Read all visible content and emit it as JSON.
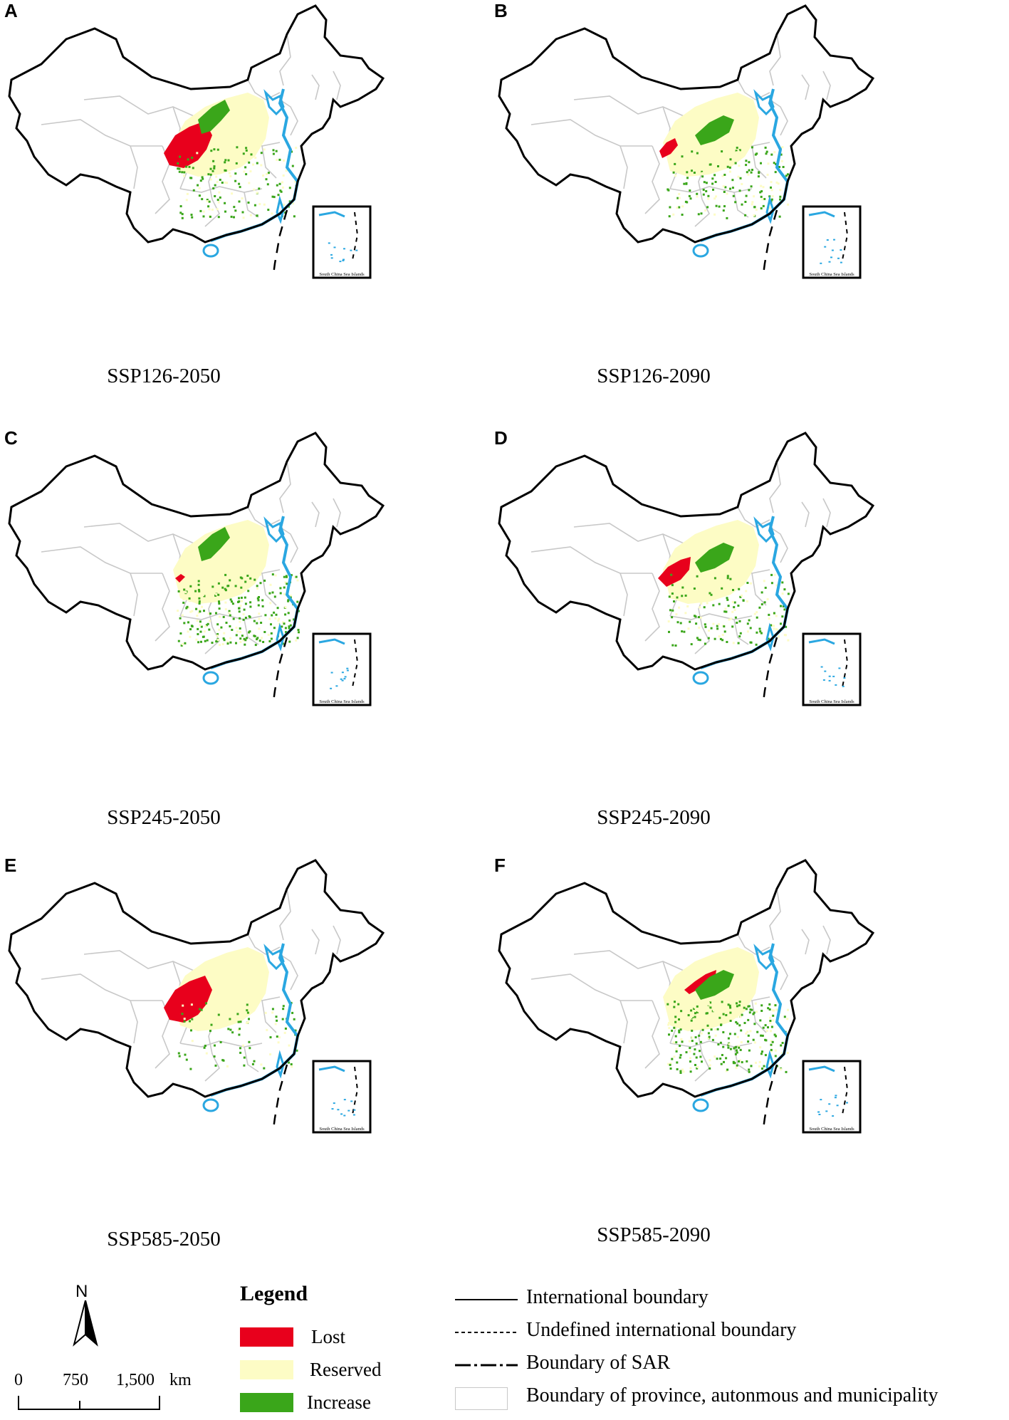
{
  "panels": [
    {
      "letter": "A",
      "caption": "SSP126-2050",
      "lost": "large",
      "increase": "north",
      "dots": "medium"
    },
    {
      "letter": "B",
      "caption": "SSP126-2090",
      "lost": "small",
      "increase": "band",
      "dots": "medium"
    },
    {
      "letter": "C",
      "caption": "SSP245-2050",
      "lost": "tiny",
      "increase": "north",
      "dots": "heavy"
    },
    {
      "letter": "D",
      "caption": "SSP245-2090",
      "lost": "medium",
      "increase": "band",
      "dots": "medium"
    },
    {
      "letter": "E",
      "caption": "SSP585-2050",
      "lost": "large",
      "increase": "none",
      "dots": "light"
    },
    {
      "letter": "F",
      "caption": "SSP585-2090",
      "lost": "north",
      "increase": "band",
      "dots": "heavy"
    }
  ],
  "inset_label": "South China Sea Islands",
  "north_arrow_label": "N",
  "scale_bar": {
    "ticks": [
      "0",
      "750",
      "1,500"
    ],
    "unit": "km"
  },
  "legend": {
    "title": "Legend",
    "items": [
      {
        "label": "Lost",
        "color": "#e8001c"
      },
      {
        "label": "Reserved",
        "color": "#fdfcc5"
      },
      {
        "label": "Increase",
        "color": "#3aa61a"
      }
    ]
  },
  "boundaries": [
    {
      "label": "International boundary",
      "style": "solid"
    },
    {
      "label": "Undefined international boundary",
      "style": "dashed"
    },
    {
      "label": "Boundary of SAR",
      "style": "dash-dot"
    },
    {
      "label": "Boundary of province, autonmous and municipality",
      "style": "gray"
    }
  ],
  "colors": {
    "coast": "#2aa7e1",
    "province": "#c8c8c8",
    "outline": "#000000"
  }
}
